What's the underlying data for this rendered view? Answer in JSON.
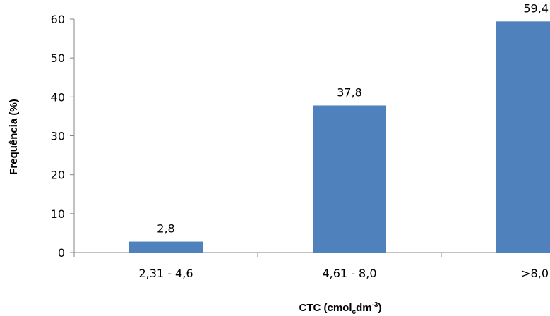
{
  "chart_data": {
    "type": "bar",
    "categories": [
      "2,31 - 4,6",
      "4,61 - 8,0",
      ">8,0"
    ],
    "values": [
      2.8,
      37.8,
      59.4
    ],
    "value_labels": [
      "2,8",
      "37,8",
      "59,4"
    ],
    "ylabel": "Frequência (%)",
    "xlabel": {
      "prefix": "CTC (cmol",
      "sub": "c",
      "mid": "dm",
      "sup": "-3",
      "suffix": ")"
    },
    "ylim": [
      0,
      60
    ],
    "yticks": [
      0,
      10,
      20,
      30,
      40,
      50,
      60
    ],
    "grid": false,
    "bar_color": "#4f81bd"
  }
}
